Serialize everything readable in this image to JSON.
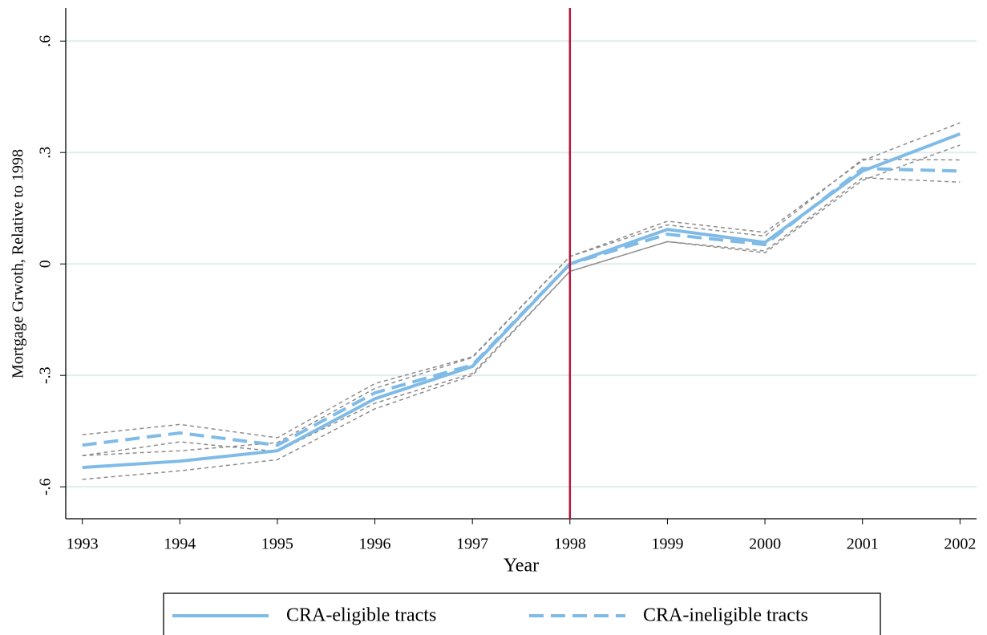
{
  "chart_data": {
    "type": "line",
    "x_label": "Year",
    "y_label": "Mortgage Grwoth, Relative to 1998",
    "x": [
      1993,
      1994,
      1995,
      1996,
      1997,
      1998,
      1999,
      2000,
      2001,
      2002
    ],
    "series": [
      {
        "name": "CRA-eligible tracts",
        "color": "#7fbbe6",
        "dashed": false,
        "values": [
          -0.548,
          -0.531,
          -0.503,
          -0.363,
          -0.276,
          0,
          0.093,
          0.058,
          0.25,
          0.35
        ],
        "lower": [
          -0.58,
          -0.557,
          -0.527,
          -0.39,
          -0.3,
          -0.02,
          0.06,
          0.03,
          0.225,
          0.32
        ],
        "upper": [
          -0.516,
          -0.503,
          -0.481,
          -0.335,
          -0.252,
          0.02,
          0.115,
          0.085,
          0.278,
          0.38
        ]
      },
      {
        "name": "CRA-ineligible tracts",
        "color": "#7fbbe6",
        "dashed": true,
        "values": [
          -0.488,
          -0.455,
          -0.488,
          -0.347,
          -0.272,
          0,
          0.08,
          0.052,
          0.257,
          0.25
        ],
        "lower": [
          -0.516,
          -0.479,
          -0.505,
          -0.375,
          -0.295,
          -0.02,
          0.06,
          0.035,
          0.232,
          0.22
        ],
        "upper": [
          -0.46,
          -0.432,
          -0.468,
          -0.322,
          -0.25,
          0.02,
          0.105,
          0.075,
          0.282,
          0.28
        ]
      }
    ],
    "band_color": "#8c8c8c",
    "vline": 1998,
    "vline_color": "#b5163a",
    "xlim": [
      1992.83,
      2002.17
    ],
    "ylim": [
      -0.686,
      0.689
    ],
    "xticks": [
      1993,
      1994,
      1995,
      1996,
      1997,
      1998,
      1999,
      2000,
      2001,
      2002
    ],
    "yticks": [
      {
        "value": -0.6,
        "label": "-.6"
      },
      {
        "value": -0.3,
        "label": "-.3"
      },
      0,
      {
        "value": 0.3,
        "label": ".3"
      },
      {
        "value": 0.6,
        "label": ".6"
      }
    ],
    "grid": true,
    "legend": "bottom"
  }
}
